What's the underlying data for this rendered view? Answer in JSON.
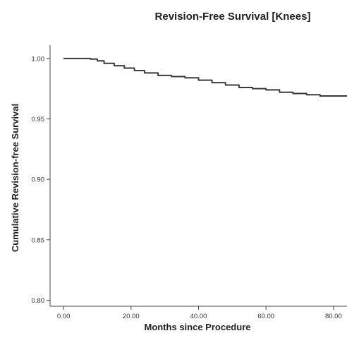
{
  "chart_data": {
    "type": "line",
    "title": "Revision-Free Survival [Knees]",
    "xlabel": "Months since Procedure",
    "ylabel": "Cumulative Revision-free Survival",
    "xlim": [
      -4,
      84
    ],
    "ylim": [
      0.795,
      1.011
    ],
    "x_ticks": [
      0,
      20,
      40,
      60,
      80
    ],
    "x_tick_labels": [
      "0.00",
      "20.00",
      "40.00",
      "60.00",
      "80.00"
    ],
    "y_ticks": [
      0.8,
      0.85,
      0.9,
      0.95,
      1.0
    ],
    "y_tick_labels": [
      "0.80",
      "0.85",
      "0.90",
      "0.95",
      "1.00"
    ],
    "grid": false,
    "series": [
      {
        "color": "#3a3a3a",
        "step": true,
        "x": [
          0,
          7,
          8,
          10,
          12,
          15,
          18,
          21,
          24,
          28,
          32,
          36,
          40,
          44,
          48,
          52,
          56,
          60,
          64,
          68,
          72,
          76,
          84
        ],
        "y": [
          1.0,
          1.0,
          0.9995,
          0.998,
          0.996,
          0.994,
          0.992,
          0.99,
          0.988,
          0.986,
          0.985,
          0.984,
          0.982,
          0.98,
          0.978,
          0.976,
          0.975,
          0.974,
          0.972,
          0.971,
          0.97,
          0.969,
          0.969
        ]
      }
    ]
  }
}
